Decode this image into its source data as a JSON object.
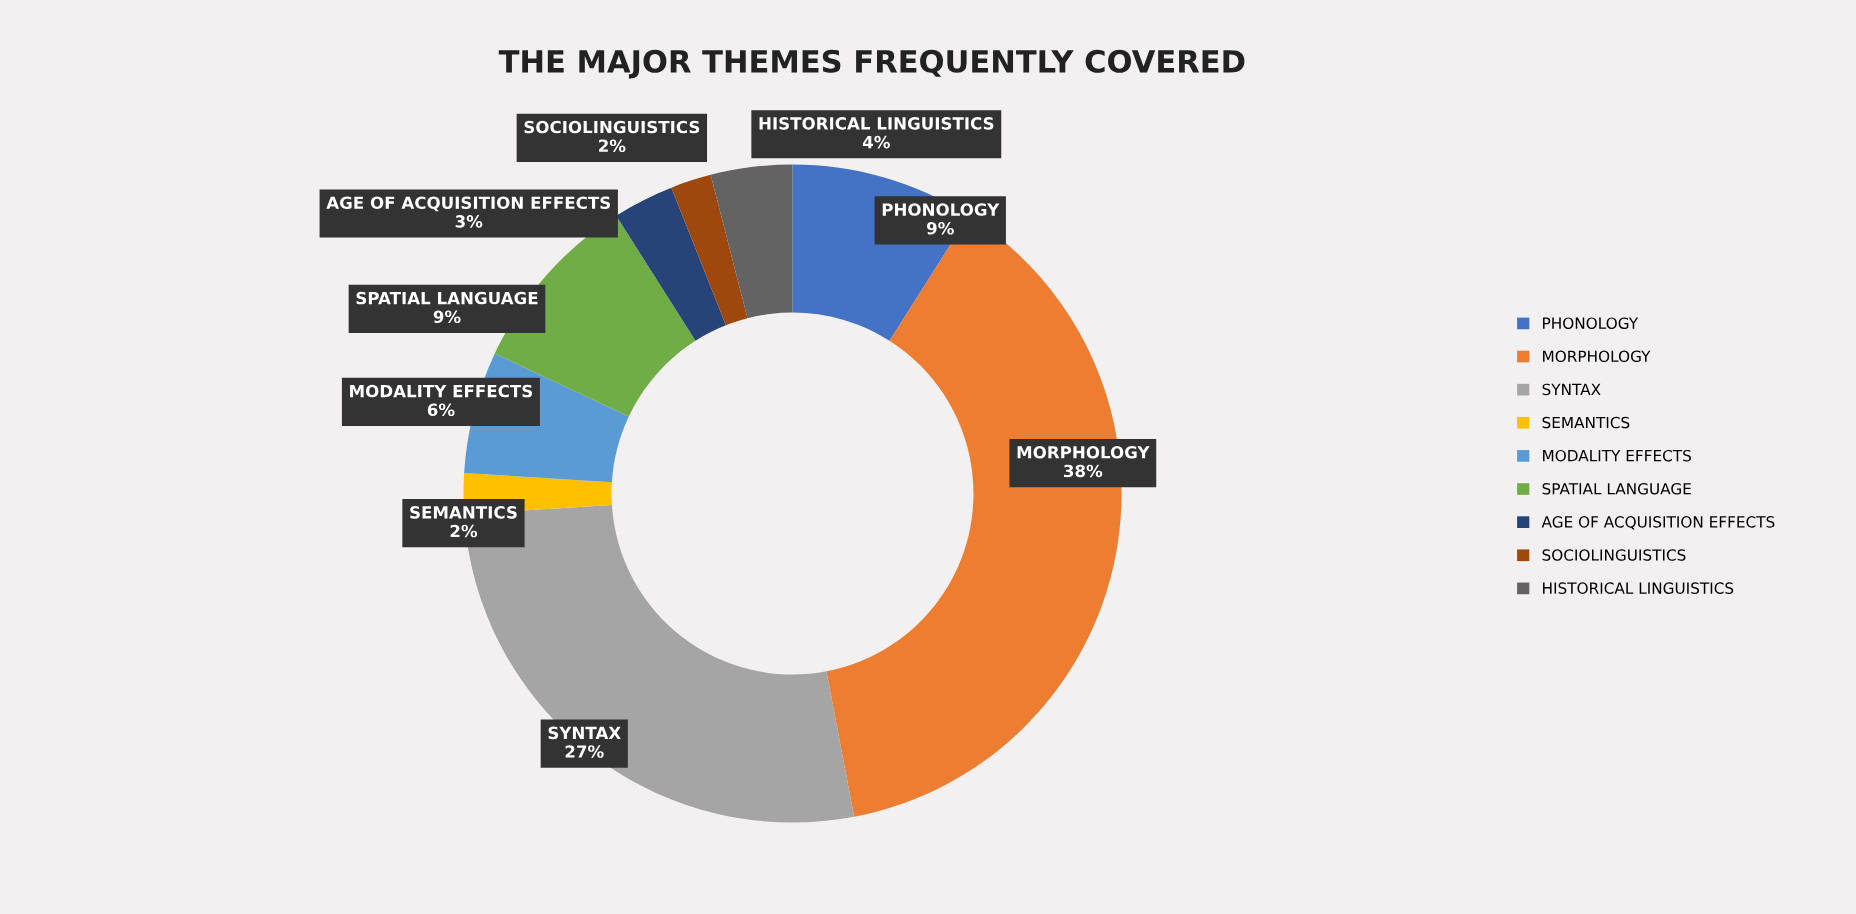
{
  "chart_data": {
    "type": "donut",
    "title": "THE MAJOR THEMES FREQUENTLY COVERED",
    "categories": [
      "PHONOLOGY",
      "MORPHOLOGY",
      "SYNTAX",
      "SEMANTICS",
      "MODALITY EFFECTS",
      "SPATIAL LANGUAGE",
      "AGE OF ACQUISITION EFFECTS",
      "SOCIOLINGUISTICS",
      "HISTORICAL LINGUISTICS"
    ],
    "values": [
      9,
      38,
      27,
      2,
      6,
      9,
      3,
      2,
      4
    ],
    "colors": [
      "#4472c4",
      "#ed7d31",
      "#a5a5a5",
      "#ffc000",
      "#5b9bd5",
      "#70ad47",
      "#264478",
      "#9e480e",
      "#636363"
    ],
    "value_labels": [
      "9%",
      "38%",
      "27%",
      "2%",
      "6%",
      "9%",
      "3%",
      "2%",
      "4%"
    ],
    "legend": "right"
  }
}
